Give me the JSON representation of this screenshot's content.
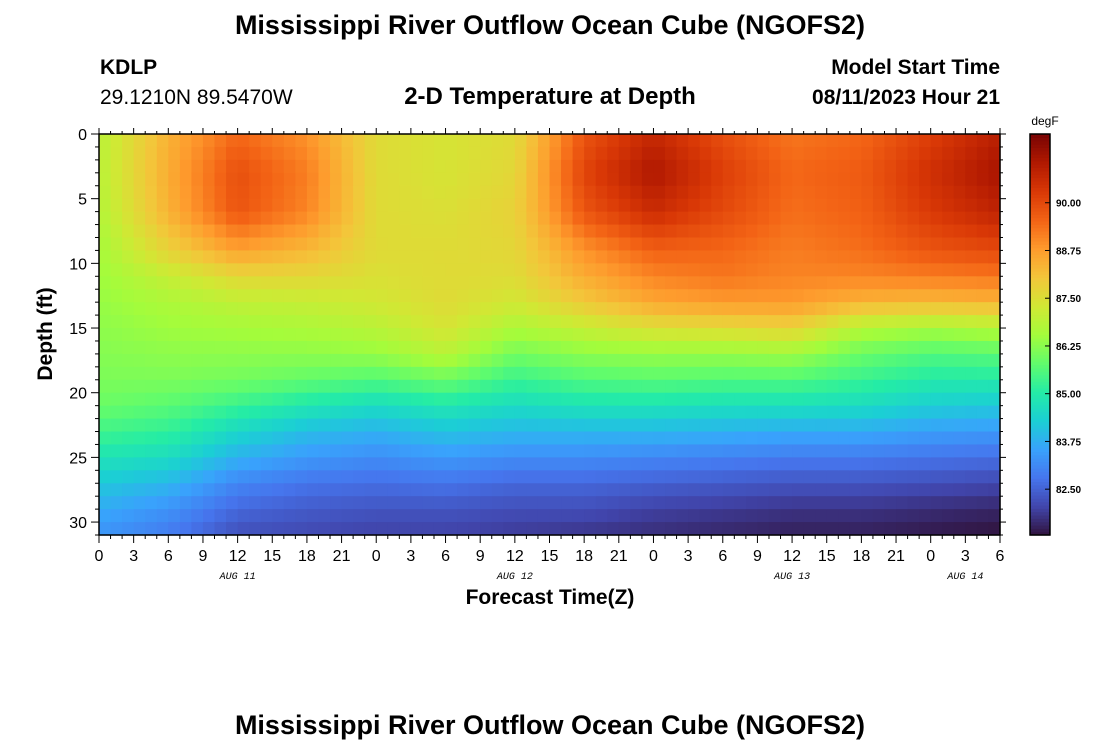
{
  "page": {
    "title": "Mississippi River Outflow Ocean Cube (NGOFS2)",
    "title_repeat": "Mississippi River Outflow Ocean Cube (NGOFS2)"
  },
  "station": {
    "id": "KDLP",
    "coords": "29.1210N  89.5470W"
  },
  "model": {
    "start_label": "Model Start Time",
    "start_value": "08/11/2023 Hour 21"
  },
  "chart_data": {
    "type": "heatmap",
    "title": "2-D Temperature at Depth",
    "xlabel": "Forecast Time(Z)",
    "ylabel": "Depth (ft)",
    "x_tick_labels": [
      "0",
      "3",
      "6",
      "9",
      "12",
      "15",
      "18",
      "21",
      "0",
      "3",
      "6",
      "9",
      "12",
      "15",
      "18",
      "21",
      "0",
      "3",
      "6",
      "9",
      "12",
      "15",
      "18",
      "21",
      "0",
      "3",
      "6"
    ],
    "x_range_hours": [
      0,
      78
    ],
    "date_labels": [
      {
        "text": "AUG 11",
        "hour": 12
      },
      {
        "text": "AUG 12",
        "hour": 36
      },
      {
        "text": "AUG 13",
        "hour": 60
      },
      {
        "text": "AUG 14",
        "hour": 75
      }
    ],
    "y_tick_labels": [
      "0",
      "5",
      "10",
      "15",
      "20",
      "25",
      "30"
    ],
    "y_ticks": [
      0,
      5,
      10,
      15,
      20,
      25,
      30
    ],
    "y_range_ft": [
      0,
      31
    ],
    "y_inverted": true,
    "colorbar": {
      "unit": "degF",
      "range": [
        81.3,
        91.8
      ],
      "tick_values": [
        82.5,
        83.75,
        85.0,
        86.25,
        87.5,
        88.75,
        90.0
      ],
      "tick_labels": [
        "82.50",
        "83.75",
        "85.00",
        "86.25",
        "87.50",
        "88.75",
        "90.00"
      ],
      "palette": [
        "#30123b",
        "#4145ab",
        "#4675ed",
        "#39a2fc",
        "#1bcfd4",
        "#24eca6",
        "#61fc6c",
        "#a4fc3b",
        "#d1e834",
        "#f3c63a",
        "#fe9b2d",
        "#f36315",
        "#d93806",
        "#b11901",
        "#7a0403"
      ]
    },
    "temperature_profile": {
      "note_units": "degF",
      "depth_knots_ft": [
        0,
        3,
        6,
        9,
        11,
        13,
        15,
        17,
        19,
        21,
        23,
        25,
        27,
        29,
        31
      ],
      "anchor_hours": [
        0,
        6,
        12,
        18,
        24,
        30,
        36,
        42,
        48,
        54,
        60,
        66,
        72,
        78
      ],
      "columns": [
        [
          86.9,
          86.9,
          86.8,
          86.6,
          86.5,
          86.4,
          86.3,
          86.2,
          86.1,
          85.9,
          85.4,
          84.8,
          84.2,
          83.7,
          83.3
        ],
        [
          88.4,
          88.5,
          88.4,
          87.8,
          87.1,
          86.7,
          86.5,
          86.3,
          86.1,
          85.7,
          85.2,
          84.6,
          83.9,
          83.3,
          82.9
        ],
        [
          89.5,
          89.9,
          89.8,
          88.7,
          87.7,
          87.0,
          86.6,
          86.3,
          86.0,
          85.3,
          84.5,
          83.8,
          83.1,
          82.6,
          82.2
        ],
        [
          88.9,
          89.2,
          89.1,
          88.3,
          87.7,
          87.1,
          86.7,
          86.3,
          85.8,
          84.9,
          84.0,
          83.4,
          82.8,
          82.4,
          82.1
        ],
        [
          87.6,
          87.6,
          87.6,
          87.6,
          87.5,
          87.3,
          86.9,
          86.4,
          85.6,
          84.6,
          83.8,
          83.2,
          82.7,
          82.3,
          82.0
        ],
        [
          87.4,
          87.4,
          87.5,
          87.6,
          87.6,
          87.6,
          87.4,
          86.9,
          85.9,
          84.9,
          84.1,
          83.4,
          82.8,
          82.3,
          82.0
        ],
        [
          87.6,
          87.7,
          87.8,
          87.7,
          87.6,
          87.3,
          86.7,
          86.0,
          85.3,
          84.6,
          83.9,
          83.2,
          82.6,
          82.2,
          81.9
        ],
        [
          89.8,
          90.1,
          89.8,
          88.9,
          88.5,
          88.0,
          87.1,
          86.3,
          85.6,
          84.8,
          83.9,
          83.2,
          82.6,
          82.2,
          81.8
        ],
        [
          90.7,
          91.1,
          90.6,
          89.6,
          89.1,
          88.6,
          87.5,
          86.4,
          85.7,
          84.8,
          83.9,
          83.1,
          82.5,
          82.0,
          81.7
        ],
        [
          89.9,
          90.2,
          90.0,
          89.5,
          89.3,
          88.8,
          87.6,
          86.4,
          85.6,
          84.7,
          83.8,
          83.0,
          82.4,
          81.9,
          81.6
        ],
        [
          89.3,
          89.5,
          89.4,
          89.2,
          89.1,
          88.8,
          87.8,
          86.5,
          85.6,
          84.7,
          83.7,
          82.9,
          82.3,
          81.8,
          81.5
        ],
        [
          89.5,
          89.7,
          89.6,
          89.4,
          89.1,
          88.4,
          86.8,
          85.9,
          85.3,
          84.6,
          83.7,
          82.9,
          82.3,
          81.8,
          81.5
        ],
        [
          90.2,
          90.5,
          90.3,
          89.8,
          89.2,
          88.3,
          86.6,
          85.6,
          85.0,
          84.3,
          83.5,
          82.8,
          82.2,
          81.7,
          81.4
        ],
        [
          90.9,
          91.2,
          90.8,
          90.0,
          89.3,
          88.4,
          86.8,
          85.7,
          85.0,
          84.2,
          83.4,
          82.7,
          82.1,
          81.6,
          81.3
        ]
      ]
    }
  }
}
